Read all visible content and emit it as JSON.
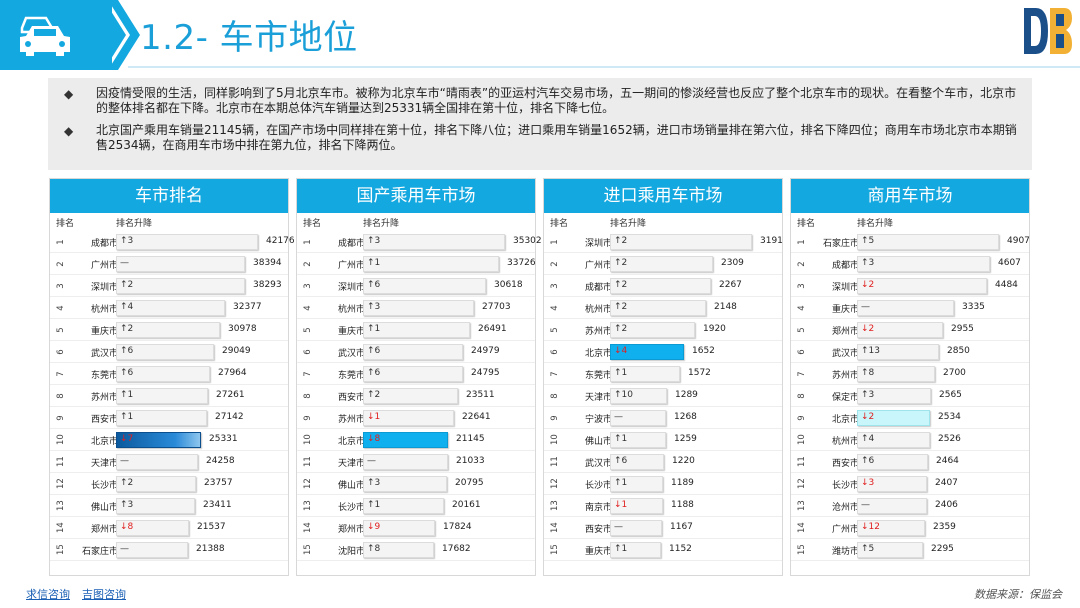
{
  "header": {
    "title": "1.2- 车市地位"
  },
  "summary": {
    "bullets": [
      "因疫情受限的生活，同样影响到了5月北京车市。被称为北京车市“晴雨表”的亚运村汽车交易市场，五一期间的惨淡经营也反应了整个北京车市的现状。在看整个车市，北京市的整体排名都在下降。北京市在本期总体汽车销量达到25331辆全国排在第十位，排名下降七位。",
      "北京国产乘用车销量21145辆，在国产市场中同样排在第十位，排名下降八位；进口乘用车销量1652辆，进口市场销量排在第六位，排名下降四位；商用车市场北京市本期销售2534辆，在商用车市场中排在第九位，排名下降两位。"
    ]
  },
  "panels": [
    {
      "title": "车市排名",
      "col_rank": "排名",
      "col_change": "排名升降",
      "max": 42176,
      "rows": [
        {
          "rank": "1",
          "city": "成都市",
          "change": "↑3",
          "dir": "up",
          "value": 42176
        },
        {
          "rank": "2",
          "city": "广州市",
          "change": "—",
          "dir": "same",
          "value": 38394
        },
        {
          "rank": "3",
          "city": "深圳市",
          "change": "↑2",
          "dir": "up",
          "value": 38293
        },
        {
          "rank": "4",
          "city": "杭州市",
          "change": "↑4",
          "dir": "up",
          "value": 32377
        },
        {
          "rank": "5",
          "city": "重庆市",
          "change": "↑2",
          "dir": "up",
          "value": 30978
        },
        {
          "rank": "6",
          "city": "武汉市",
          "change": "↑6",
          "dir": "up",
          "value": 29049
        },
        {
          "rank": "7",
          "city": "东莞市",
          "change": "↑6",
          "dir": "up",
          "value": 27964
        },
        {
          "rank": "8",
          "city": "苏州市",
          "change": "↑1",
          "dir": "up",
          "value": 27261
        },
        {
          "rank": "9",
          "city": "西安市",
          "change": "↑1",
          "dir": "up",
          "value": 27142
        },
        {
          "rank": "10",
          "city": "北京市",
          "change": "↓7",
          "dir": "down",
          "value": 25331,
          "highlight": "grad"
        },
        {
          "rank": "11",
          "city": "天津市",
          "change": "—",
          "dir": "same",
          "value": 24258
        },
        {
          "rank": "12",
          "city": "长沙市",
          "change": "↑2",
          "dir": "up",
          "value": 23757
        },
        {
          "rank": "13",
          "city": "佛山市",
          "change": "↑3",
          "dir": "up",
          "value": 23411
        },
        {
          "rank": "14",
          "city": "郑州市",
          "change": "↓8",
          "dir": "down",
          "value": 21537
        },
        {
          "rank": "15",
          "city": "石家庄市",
          "change": "—",
          "dir": "same",
          "value": 21388
        }
      ]
    },
    {
      "title": "国产乘用车市场",
      "col_rank": "排名",
      "col_change": "排名升降",
      "max": 35302,
      "rows": [
        {
          "rank": "1",
          "city": "成都市",
          "change": "↑3",
          "dir": "up",
          "value": 35302
        },
        {
          "rank": "2",
          "city": "广州市",
          "change": "↑1",
          "dir": "up",
          "value": 33726
        },
        {
          "rank": "3",
          "city": "深圳市",
          "change": "↑6",
          "dir": "up",
          "value": 30618
        },
        {
          "rank": "4",
          "city": "杭州市",
          "change": "↑3",
          "dir": "up",
          "value": 27703
        },
        {
          "rank": "5",
          "city": "重庆市",
          "change": "↑1",
          "dir": "up",
          "value": 26491
        },
        {
          "rank": "6",
          "city": "武汉市",
          "change": "↑6",
          "dir": "up",
          "value": 24979
        },
        {
          "rank": "7",
          "city": "东莞市",
          "change": "↑6",
          "dir": "up",
          "value": 24795
        },
        {
          "rank": "8",
          "city": "西安市",
          "change": "↑2",
          "dir": "up",
          "value": 23511
        },
        {
          "rank": "9",
          "city": "苏州市",
          "change": "↓1",
          "dir": "down",
          "value": 22641
        },
        {
          "rank": "10",
          "city": "北京市",
          "change": "↓8",
          "dir": "down",
          "value": 21145,
          "highlight": "blue"
        },
        {
          "rank": "11",
          "city": "天津市",
          "change": "—",
          "dir": "same",
          "value": 21033
        },
        {
          "rank": "12",
          "city": "佛山市",
          "change": "↑3",
          "dir": "up",
          "value": 20795
        },
        {
          "rank": "13",
          "city": "长沙市",
          "change": "↑1",
          "dir": "up",
          "value": 20161
        },
        {
          "rank": "14",
          "city": "郑州市",
          "change": "↓9",
          "dir": "down",
          "value": 17824
        },
        {
          "rank": "15",
          "city": "沈阳市",
          "change": "↑8",
          "dir": "up",
          "value": 17682
        }
      ]
    },
    {
      "title": "进口乘用车市场",
      "col_rank": "排名",
      "col_change": "排名升降",
      "max": 3191,
      "rows": [
        {
          "rank": "1",
          "city": "深圳市",
          "change": "↑2",
          "dir": "up",
          "value": 3191
        },
        {
          "rank": "2",
          "city": "广州市",
          "change": "↑2",
          "dir": "up",
          "value": 2309
        },
        {
          "rank": "3",
          "city": "成都市",
          "change": "↑2",
          "dir": "up",
          "value": 2267
        },
        {
          "rank": "4",
          "city": "杭州市",
          "change": "↑2",
          "dir": "up",
          "value": 2148
        },
        {
          "rank": "5",
          "city": "苏州市",
          "change": "↑2",
          "dir": "up",
          "value": 1920
        },
        {
          "rank": "6",
          "city": "北京市",
          "change": "↓4",
          "dir": "down",
          "value": 1652,
          "highlight": "blue"
        },
        {
          "rank": "7",
          "city": "东莞市",
          "change": "↑1",
          "dir": "up",
          "value": 1572
        },
        {
          "rank": "8",
          "city": "天津市",
          "change": "↑10",
          "dir": "up",
          "value": 1289
        },
        {
          "rank": "9",
          "city": "宁波市",
          "change": "—",
          "dir": "same",
          "value": 1268
        },
        {
          "rank": "10",
          "city": "佛山市",
          "change": "↑1",
          "dir": "up",
          "value": 1259
        },
        {
          "rank": "11",
          "city": "武汉市",
          "change": "↑6",
          "dir": "up",
          "value": 1220
        },
        {
          "rank": "12",
          "city": "长沙市",
          "change": "↑1",
          "dir": "up",
          "value": 1189
        },
        {
          "rank": "13",
          "city": "南京市",
          "change": "↓1",
          "dir": "down",
          "value": 1188
        },
        {
          "rank": "14",
          "city": "西安市",
          "change": "—",
          "dir": "same",
          "value": 1167
        },
        {
          "rank": "15",
          "city": "重庆市",
          "change": "↑1",
          "dir": "up",
          "value": 1152
        }
      ]
    },
    {
      "title": "商用车市场",
      "col_rank": "排名",
      "col_change": "排名升降",
      "max": 4907,
      "rows": [
        {
          "rank": "1",
          "city": "石家庄市",
          "change": "↑5",
          "dir": "up",
          "value": 4907
        },
        {
          "rank": "2",
          "city": "成都市",
          "change": "↑3",
          "dir": "up",
          "value": 4607
        },
        {
          "rank": "3",
          "city": "深圳市",
          "change": "↓2",
          "dir": "down",
          "value": 4484
        },
        {
          "rank": "4",
          "city": "重庆市",
          "change": "—",
          "dir": "same",
          "value": 3335
        },
        {
          "rank": "5",
          "city": "郑州市",
          "change": "↓2",
          "dir": "down",
          "value": 2955
        },
        {
          "rank": "6",
          "city": "武汉市",
          "change": "↑13",
          "dir": "up",
          "value": 2850
        },
        {
          "rank": "7",
          "city": "苏州市",
          "change": "↑8",
          "dir": "up",
          "value": 2700
        },
        {
          "rank": "8",
          "city": "保定市",
          "change": "↑3",
          "dir": "up",
          "value": 2565
        },
        {
          "rank": "9",
          "city": "北京市",
          "change": "↓2",
          "dir": "down",
          "value": 2534,
          "highlight": "cyan"
        },
        {
          "rank": "10",
          "city": "杭州市",
          "change": "↑4",
          "dir": "up",
          "value": 2526
        },
        {
          "rank": "11",
          "city": "西安市",
          "change": "↑6",
          "dir": "up",
          "value": 2464
        },
        {
          "rank": "12",
          "city": "长沙市",
          "change": "↓3",
          "dir": "down",
          "value": 2407
        },
        {
          "rank": "13",
          "city": "沧州市",
          "change": "—",
          "dir": "same",
          "value": 2406
        },
        {
          "rank": "14",
          "city": "广州市",
          "change": "↓12",
          "dir": "down",
          "value": 2359
        },
        {
          "rank": "15",
          "city": "潍坊市",
          "change": "↑5",
          "dir": "up",
          "value": 2295
        }
      ]
    }
  ],
  "footer": {
    "link1": "求信咨询",
    "link2": "吉图咨询",
    "source": "数据来源：保监会"
  },
  "colors": {
    "brand": "#14a8e0",
    "down": "#e02020",
    "highlight_blue": "#10b0ee"
  }
}
